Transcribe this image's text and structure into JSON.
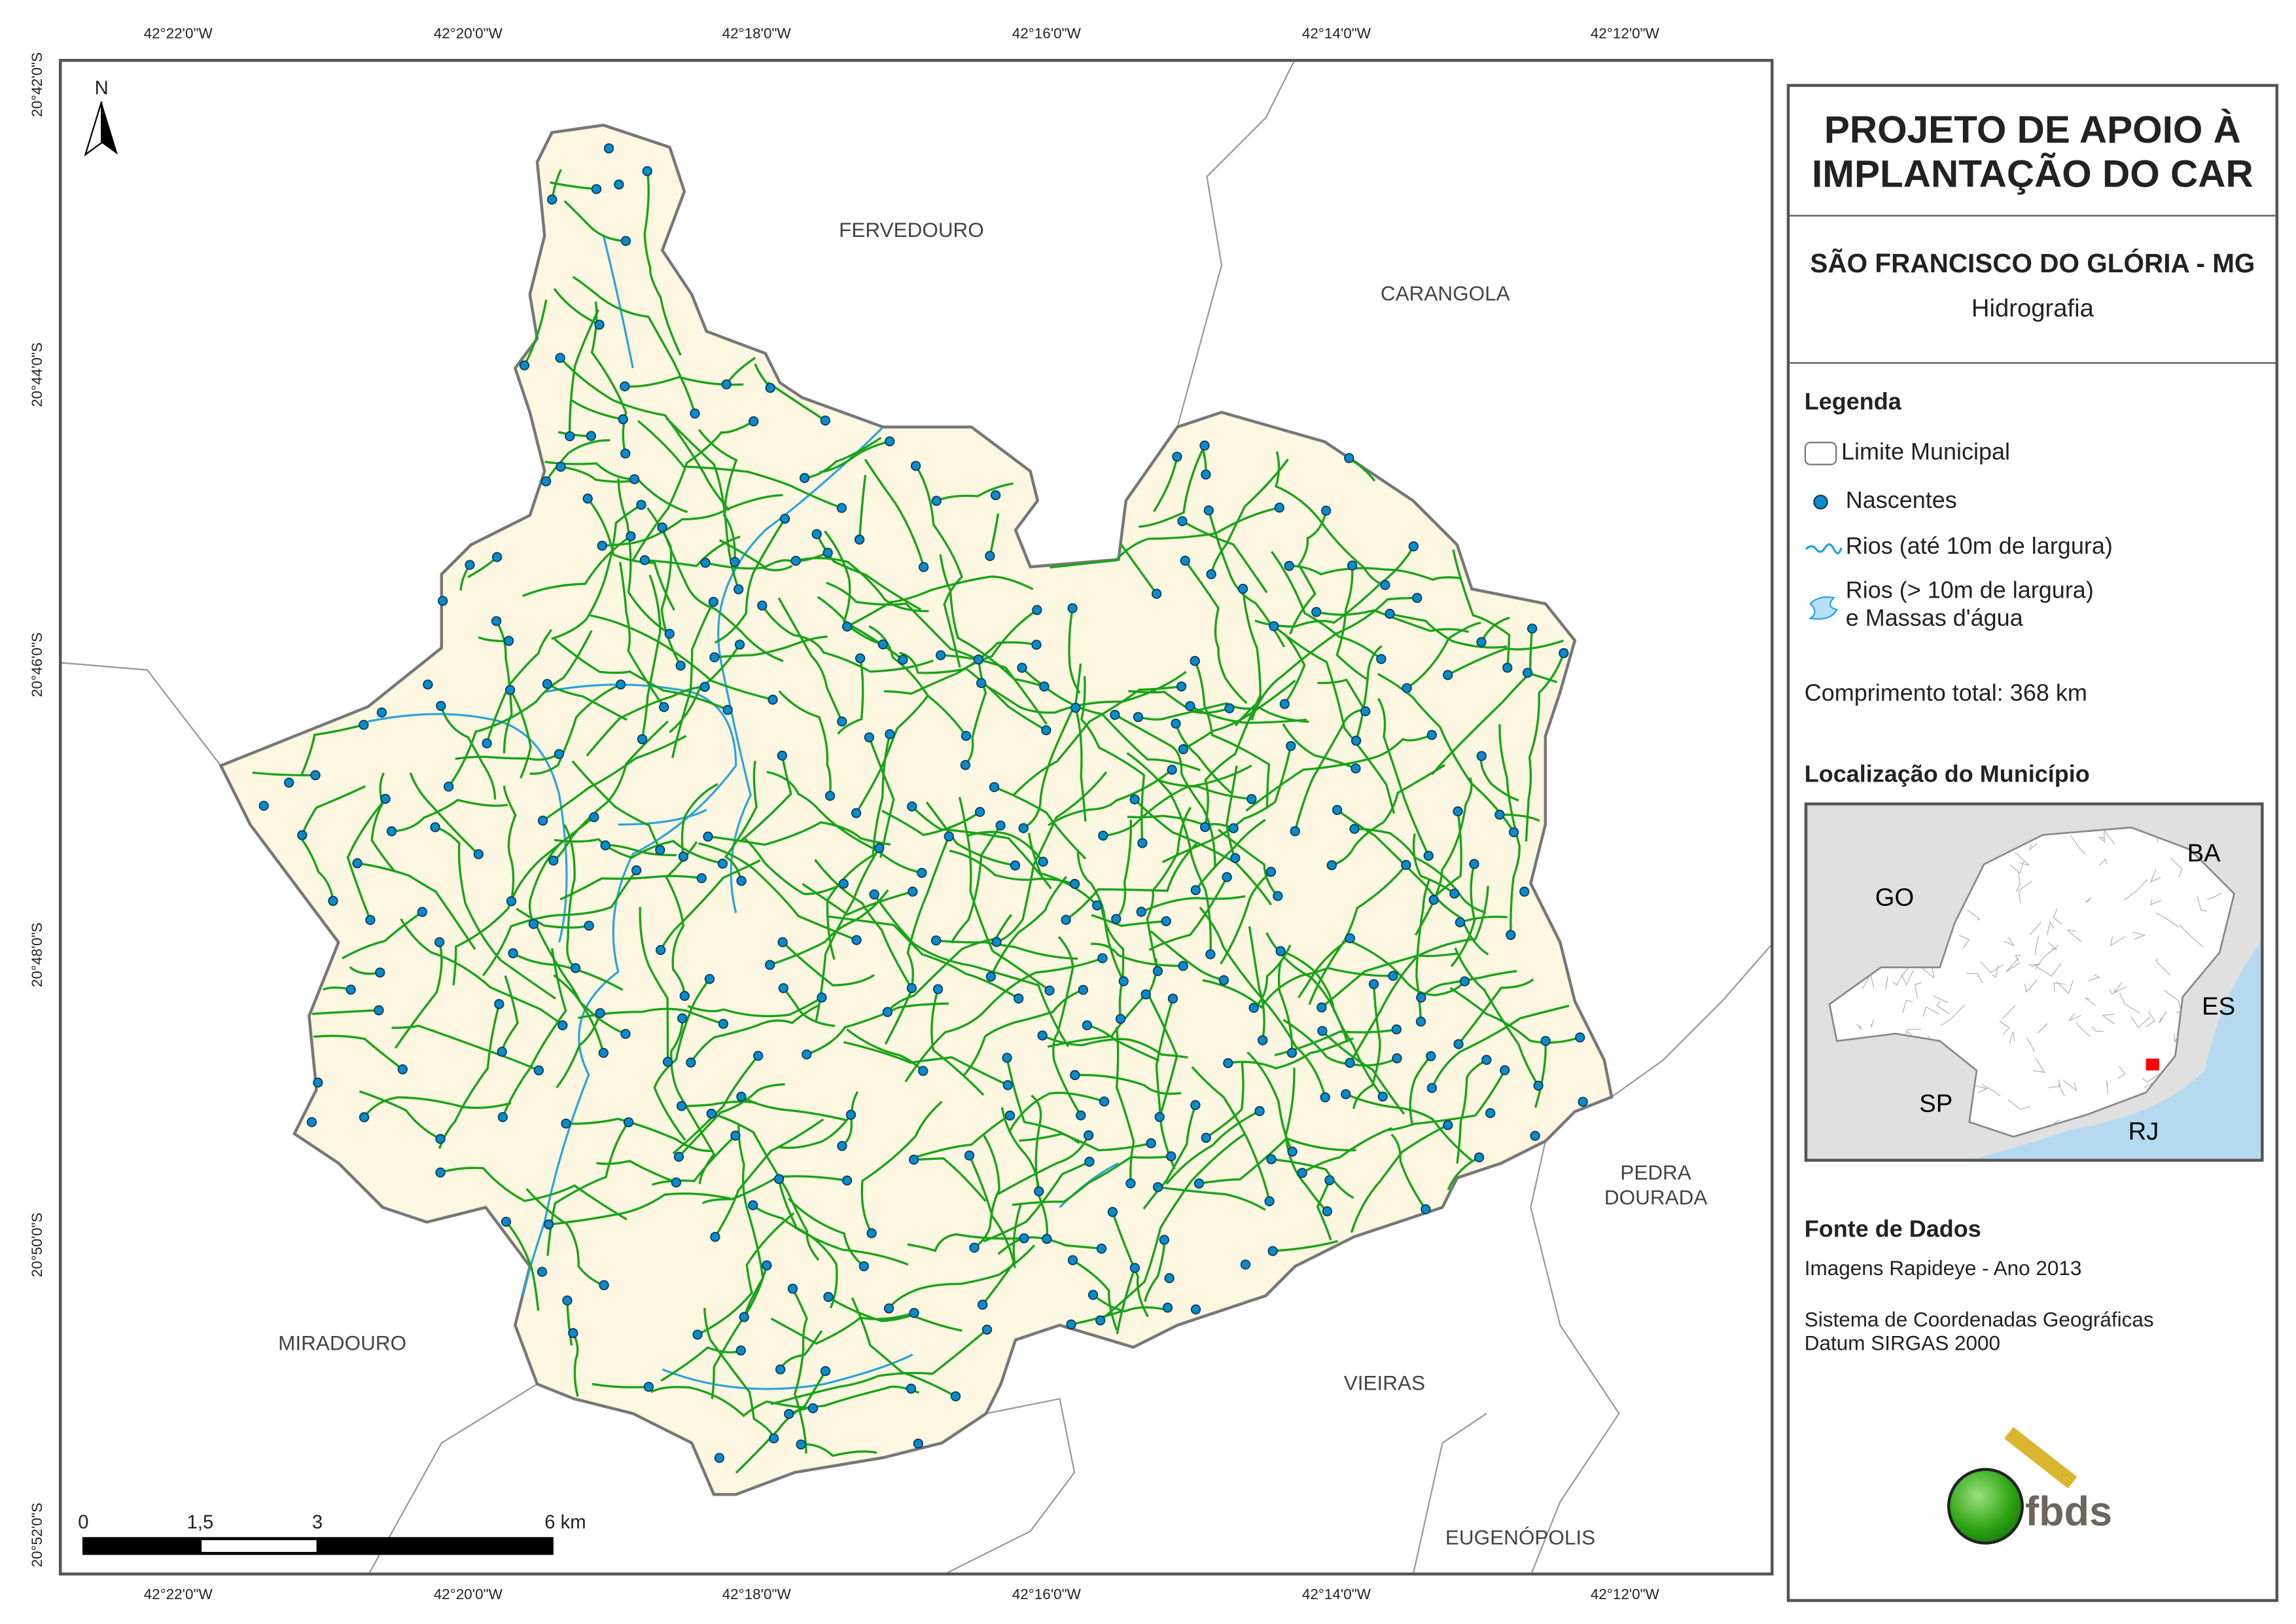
{
  "graticule": {
    "longitudes": [
      "42°22'0\"W",
      "42°20'0\"W",
      "42°18'0\"W",
      "42°16'0\"W",
      "42°14'0\"W",
      "42°12'0\"W"
    ],
    "latitudes": [
      "20°42'0\"S",
      "20°44'0\"S",
      "20°46'0\"S",
      "20°48'0\"S",
      "20°50'0\"S",
      "20°52'0\"S"
    ]
  },
  "north_arrow": {
    "label": "N",
    "icon": "north-arrow-icon"
  },
  "places": {
    "fervedouro": "FERVEDOURO",
    "carangola": "CARANGOLA",
    "pedra_dourada_1": "PEDRA",
    "pedra_dourada_2": "DOURADA",
    "miradouro": "MIRADOURO",
    "vieiras": "VIEIRAS",
    "eugenopolis": "EUGENÓPOLIS"
  },
  "scale_bar": {
    "labels": [
      "0",
      "1,5",
      "3",
      "6 km"
    ]
  },
  "panel": {
    "title_line1": "PROJETO DE APOIO À",
    "title_line2": "IMPLANTAÇÃO DO CAR",
    "municipality": "SÃO FRANCISCO DO GLÓRIA - MG",
    "theme": "Hidrografia",
    "legend": {
      "heading": "Legenda",
      "items": [
        {
          "label": "Limite Municipal",
          "icon": "boundary-swatch"
        },
        {
          "label": "Nascentes",
          "icon": "spring-dot"
        },
        {
          "label": "Rios (até 10m de largura)",
          "icon": "river-line"
        },
        {
          "label_line1": "Rios (> 10m de largura)",
          "label_line2": "e Massas d'água",
          "icon": "water-body-swatch"
        }
      ],
      "total_length": "Comprimento total: 368 km"
    },
    "location": {
      "heading": "Localização do Município",
      "states": [
        "GO",
        "BA",
        "ES",
        "SP",
        "RJ"
      ]
    },
    "sources": {
      "heading": "Fonte de Dados",
      "line1": "Imagens Rapideye - Ano 2013",
      "line2": "Sistema de Coordenadas Geográficas",
      "line3": "Datum SIRGAS 2000"
    },
    "logo": "fbds"
  },
  "colors": {
    "municipality_fill": "#fdf6e0",
    "boundary": "#777777",
    "streams": "#1aa31a",
    "rivers": "#29a3dc",
    "springs": "#0a7fb8",
    "water_fill": "#b7dff5",
    "location_marker": "#ff0000"
  }
}
